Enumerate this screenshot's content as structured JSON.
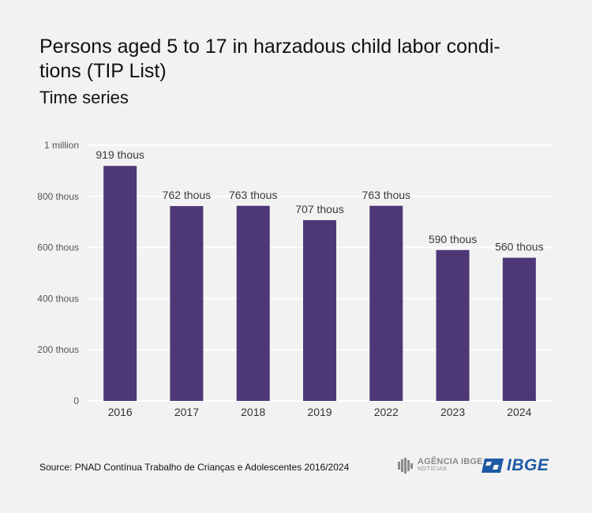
{
  "chart_data": {
    "type": "bar",
    "title": "Persons aged 5 to 17 in harzadous child labor condi-tions (TIP List)",
    "title_lines": [
      "Persons aged 5 to 17 in harzadous child labor condi-",
      "tions (TIP List)"
    ],
    "subtitle": "Time series",
    "categories": [
      "2016",
      "2017",
      "2018",
      "2019",
      "2022",
      "2023",
      "2024"
    ],
    "values": [
      919000,
      762000,
      763000,
      707000,
      763000,
      590000,
      560000
    ],
    "data_labels": [
      "919 thous",
      "762 thous",
      "763 thous",
      "707 thous",
      "763 thous",
      "590 thous",
      "560 thous"
    ],
    "y_ticks": [
      0,
      200000,
      400000,
      600000,
      800000,
      1000000
    ],
    "y_tick_labels": [
      "0",
      "200 thous",
      "400 thous",
      "600 thous",
      "800 thous",
      "1 million"
    ],
    "ylim": [
      0,
      1000000
    ],
    "xlabel": "",
    "ylabel": "",
    "grid": true,
    "bar_color": "#4e3776"
  },
  "source": "Source: PNAD Contínua Trabalho de Crianças e Adolescentes 2016/2024",
  "logos": {
    "agencia_name": "AGÊNCIA IBGE",
    "agencia_sub": "NOTÍCIAS",
    "ibge": "IBGE"
  }
}
